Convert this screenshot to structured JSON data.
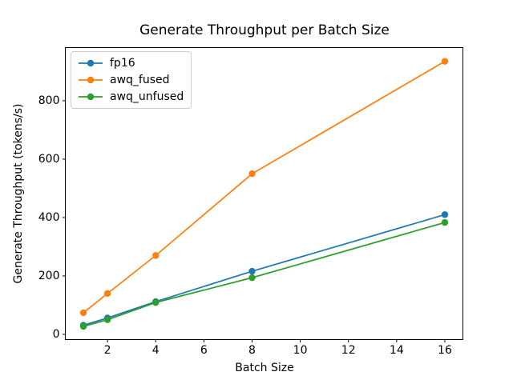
{
  "figure": {
    "background": "#ffffff"
  },
  "chart_data": {
    "type": "line",
    "title": "Generate Throughput per Batch Size",
    "xlabel": "Batch Size",
    "ylabel": "Generate Throughput (tokens/s)",
    "x": [
      1,
      2,
      4,
      8,
      16
    ],
    "series": [
      {
        "name": "fp16",
        "color": "#1f77b4",
        "values": [
          31,
          56,
          112,
          216,
          410
        ]
      },
      {
        "name": "awq_fused",
        "color": "#ff7f0e",
        "values": [
          74,
          140,
          270,
          550,
          935
        ]
      },
      {
        "name": "awq_unfused",
        "color": "#2ca02c",
        "values": [
          27,
          50,
          109,
          194,
          383
        ]
      }
    ],
    "xticks": [
      2,
      4,
      6,
      8,
      10,
      12,
      14,
      16
    ],
    "yticks": [
      0,
      200,
      400,
      600,
      800
    ],
    "xlim": [
      0.25,
      16.75
    ],
    "ylim": [
      -18,
      982
    ],
    "grid": false,
    "legend_position": "upper left",
    "marker": "circle",
    "line_width": 1.75,
    "marker_radius": 4.2,
    "axis_color": "#000000",
    "tick_font_px": 14
  }
}
